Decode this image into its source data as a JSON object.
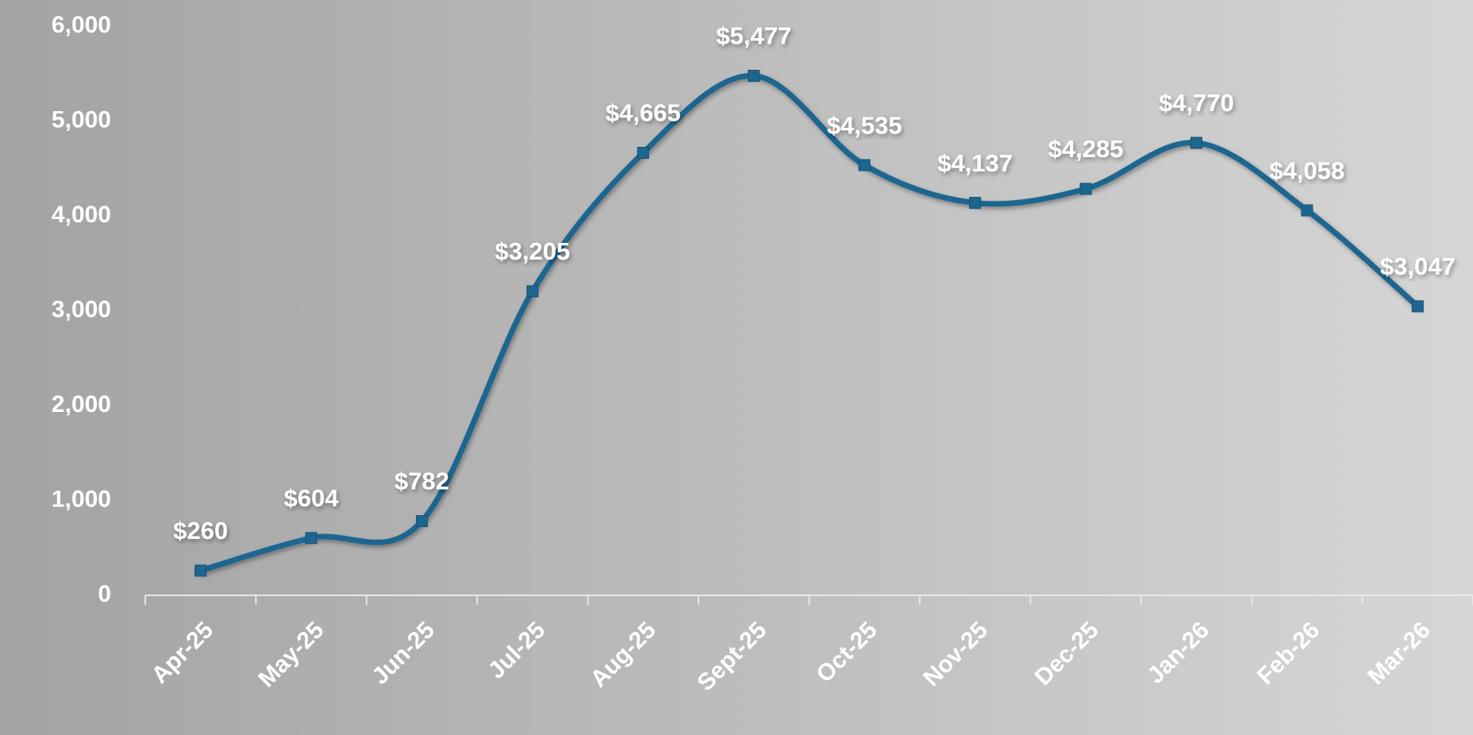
{
  "chart_data": {
    "type": "line",
    "categories": [
      "Apr-25",
      "May-25",
      "Jun-25",
      "Jul-25",
      "Aug-25",
      "Sept-25",
      "Oct-25",
      "Nov-25",
      "Dec-25",
      "Jan-26",
      "Feb-26",
      "Mar-26"
    ],
    "series": [
      {
        "color": "#1d6690",
        "values": [
          260,
          604,
          782,
          3205,
          4665,
          5477,
          4535,
          4137,
          4285,
          4770,
          4058,
          3047
        ],
        "value_labels": [
          "$260",
          "$604",
          "$782",
          "$3,205",
          "$4,665",
          "$5,477",
          "$4,535",
          "$4,137",
          "$4,285",
          "$4,770",
          "$4,058",
          "$3,047"
        ]
      }
    ],
    "ylim": [
      0,
      6000
    ],
    "yticks": [
      0,
      {
        "value": 1000,
        "label": "1,000"
      },
      {
        "value": 2000,
        "label": "2,000"
      },
      {
        "value": 3000,
        "label": "3,000"
      },
      {
        "value": 4000,
        "label": "4,000"
      },
      {
        "value": 5000,
        "label": "5,000"
      },
      {
        "value": 6000,
        "label": "6,000"
      }
    ],
    "grid": false
  }
}
